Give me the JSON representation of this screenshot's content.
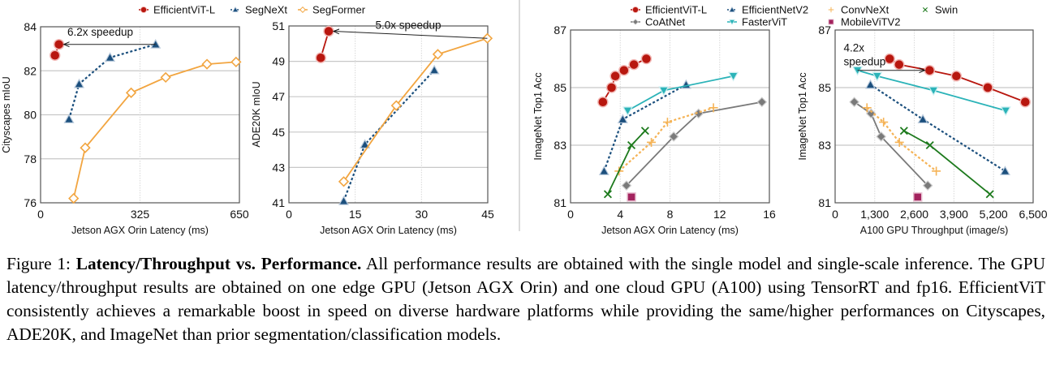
{
  "legends": [
    {
      "entries": [
        "EfficientViT-L",
        "SegNeXt",
        "SegFormer"
      ]
    },
    {
      "entries": [
        "EfficientViT-L",
        "EfficientNetV2",
        "ConvNeXt",
        "Swin",
        "CoAtNet",
        "FasterViT",
        "MobileViTV2"
      ]
    }
  ],
  "styles": {
    "EfficientViT-L": {
      "color": "#b8170f",
      "marker": "circle",
      "dash": false
    },
    "SegNeXt": {
      "color": "#1b4f7d",
      "marker": "triangle",
      "dash": true
    },
    "SegFormer": {
      "color": "#f2a540",
      "marker": "diamond-open",
      "dash": false
    },
    "EfficientNetV2": {
      "color": "#1b4f7d",
      "marker": "triangle",
      "dash": true
    },
    "ConvNeXt": {
      "color": "#f5b356",
      "marker": "plus",
      "dash": true
    },
    "Swin": {
      "color": "#1d7a1d",
      "marker": "x",
      "dash": false
    },
    "CoAtNet": {
      "color": "#7a7a7a",
      "marker": "diamond",
      "dash": false
    },
    "FasterViT": {
      "color": "#2bb3b8",
      "marker": "triangle-down",
      "dash": false
    },
    "MobileViTV2": {
      "color": "#a3235e",
      "marker": "square",
      "dash": false
    }
  },
  "chart_data": [
    {
      "type": "line",
      "xlabel": "Jetson AGX Orin Latency (ms)",
      "ylabel": "Cityscapes mIoU",
      "xlim": [
        0,
        650
      ],
      "ylim": [
        76,
        84
      ],
      "xticks": [
        0,
        325,
        650
      ],
      "xtick_labels": [
        "0",
        "325",
        "650"
      ],
      "yticks": [
        76,
        78,
        80,
        82,
        84
      ],
      "ytick_labels": [
        "76",
        "78",
        "80",
        "82",
        "84"
      ],
      "grid": true,
      "series": [
        {
          "name": "EfficientViT-L",
          "x": [
            47,
            60
          ],
          "y": [
            82.7,
            83.2
          ]
        },
        {
          "name": "SegNeXt",
          "x": [
            93,
            126,
            227,
            376
          ],
          "y": [
            79.8,
            81.4,
            82.6,
            83.2
          ]
        },
        {
          "name": "SegFormer",
          "x": [
            108,
            146,
            296,
            409,
            544,
            639
          ],
          "y": [
            76.2,
            78.5,
            81.0,
            81.7,
            82.3,
            82.4
          ]
        }
      ],
      "annotation": {
        "text": [
          "6.2x speedup"
        ],
        "from": [
          376,
          83.2
        ],
        "to": [
          60,
          83.2
        ]
      }
    },
    {
      "type": "line",
      "xlabel": "Jetson AGX Orin Latency (ms)",
      "ylabel": "ADE20K mIoU",
      "xlim": [
        0,
        45
      ],
      "ylim": [
        41,
        51
      ],
      "xticks": [
        0,
        15,
        30,
        45
      ],
      "xtick_labels": [
        "0",
        "15",
        "30",
        "45"
      ],
      "yticks": [
        41,
        43,
        45,
        47,
        49,
        51
      ],
      "ytick_labels": [
        "41",
        "43",
        "45",
        "47",
        "49",
        "51"
      ],
      "grid": true,
      "series": [
        {
          "name": "EfficientViT-L",
          "x": [
            7.2,
            9.0
          ],
          "y": [
            49.2,
            50.7
          ]
        },
        {
          "name": "SegNeXt",
          "x": [
            12.4,
            17.2,
            32.9
          ],
          "y": [
            41.1,
            44.3,
            48.5
          ]
        },
        {
          "name": "SegFormer",
          "x": [
            12.4,
            24.3,
            33.7,
            44.9
          ],
          "y": [
            42.2,
            46.5,
            49.4,
            50.3
          ]
        }
      ],
      "annotation": {
        "text": [
          "5.0x speedup"
        ],
        "from": [
          44.9,
          50.3
        ],
        "to": [
          9.0,
          50.7
        ]
      }
    },
    {
      "type": "line",
      "xlabel": "Jetson AGX Orin Latency (ms)",
      "ylabel": "ImageNet Top1 Acc",
      "xlim": [
        0,
        16
      ],
      "ylim": [
        81,
        87
      ],
      "xticks": [
        0,
        4,
        8,
        12,
        16
      ],
      "xtick_labels": [
        "0",
        "4",
        "8",
        "12",
        "16"
      ],
      "yticks": [
        81,
        83,
        85,
        87
      ],
      "ytick_labels": [
        "81",
        "83",
        "85",
        "87"
      ],
      "grid": true,
      "series": [
        {
          "name": "EfficientViT-L",
          "x": [
            2.6,
            3.3,
            3.6,
            4.3,
            5.1,
            6.1
          ],
          "y": [
            84.5,
            85.0,
            85.4,
            85.6,
            85.8,
            86.0
          ]
        },
        {
          "name": "EfficientNetV2",
          "x": [
            2.7,
            4.2,
            9.3
          ],
          "y": [
            82.1,
            83.9,
            85.1
          ]
        },
        {
          "name": "FasterViT",
          "x": [
            4.6,
            7.5,
            13.1
          ],
          "y": [
            84.2,
            84.9,
            85.4
          ]
        },
        {
          "name": "CoAtNet",
          "x": [
            4.5,
            8.3,
            10.3,
            15.4
          ],
          "y": [
            81.6,
            83.3,
            84.1,
            84.5
          ]
        },
        {
          "name": "ConvNeXt",
          "x": [
            3.9,
            6.5,
            7.8,
            11.5
          ],
          "y": [
            82.1,
            83.1,
            83.8,
            84.3
          ]
        },
        {
          "name": "Swin",
          "x": [
            3.0,
            4.9,
            6.0
          ],
          "y": [
            81.3,
            83.0,
            83.5
          ]
        },
        {
          "name": "MobileViTV2",
          "x": [
            4.9
          ],
          "y": [
            81.2
          ]
        }
      ]
    },
    {
      "type": "line",
      "xlabel": "A100 GPU Throughput (image/s)",
      "ylabel": "ImageNet Top1 Acc",
      "xlim": [
        0,
        6500
      ],
      "ylim": [
        81,
        87
      ],
      "xticks": [
        0,
        1300,
        2600,
        3900,
        5200,
        6500
      ],
      "xtick_labels": [
        "0",
        "1,300",
        "2,600",
        "3,900",
        "5,200",
        "6,500"
      ],
      "yticks": [
        81,
        83,
        85,
        87
      ],
      "ytick_labels": [
        "81",
        "83",
        "85",
        "87"
      ],
      "grid": true,
      "series": [
        {
          "name": "EfficientViT-L",
          "x": [
            1790,
            2100,
            3100,
            3980,
            5010,
            6240
          ],
          "y": [
            86.0,
            85.8,
            85.6,
            85.4,
            85.0,
            84.5
          ]
        },
        {
          "name": "FasterViT",
          "x": [
            735,
            1380,
            3230,
            5600
          ],
          "y": [
            85.6,
            85.4,
            84.9,
            84.2
          ]
        },
        {
          "name": "EfficientNetV2",
          "x": [
            1160,
            2880,
            5580
          ],
          "y": [
            85.1,
            83.9,
            82.1
          ]
        },
        {
          "name": "CoAtNet",
          "x": [
            630,
            1180,
            1510,
            3040
          ],
          "y": [
            84.5,
            84.1,
            83.3,
            81.6
          ]
        },
        {
          "name": "ConvNeXt",
          "x": [
            1045,
            1590,
            2110,
            3320
          ],
          "y": [
            84.3,
            83.8,
            83.1,
            82.1
          ]
        },
        {
          "name": "Swin",
          "x": [
            2260,
            3110,
            5080
          ],
          "y": [
            83.5,
            83.0,
            81.3
          ]
        },
        {
          "name": "MobileViTV2",
          "x": [
            2710
          ],
          "y": [
            81.2
          ]
        }
      ],
      "annotation": {
        "text": [
          "4.2x",
          "speedup"
        ],
        "from": [
          735,
          85.6
        ],
        "to": [
          3100,
          85.6
        ]
      }
    }
  ],
  "caption": {
    "label": "Figure 1:",
    "bold": "Latency/Throughput vs. Performance.",
    "text": "All performance results are obtained with the single model and single-scale inference. The GPU latency/throughput results are obtained on one edge GPU (Jetson AGX Orin) and one cloud GPU (A100) using TensorRT and fp16. EfficientViT consistently achieves a remarkable boost in speed on diverse hardware platforms while providing the same/higher performances on Cityscapes, ADE20K, and ImageNet than prior segmentation/classification models."
  }
}
